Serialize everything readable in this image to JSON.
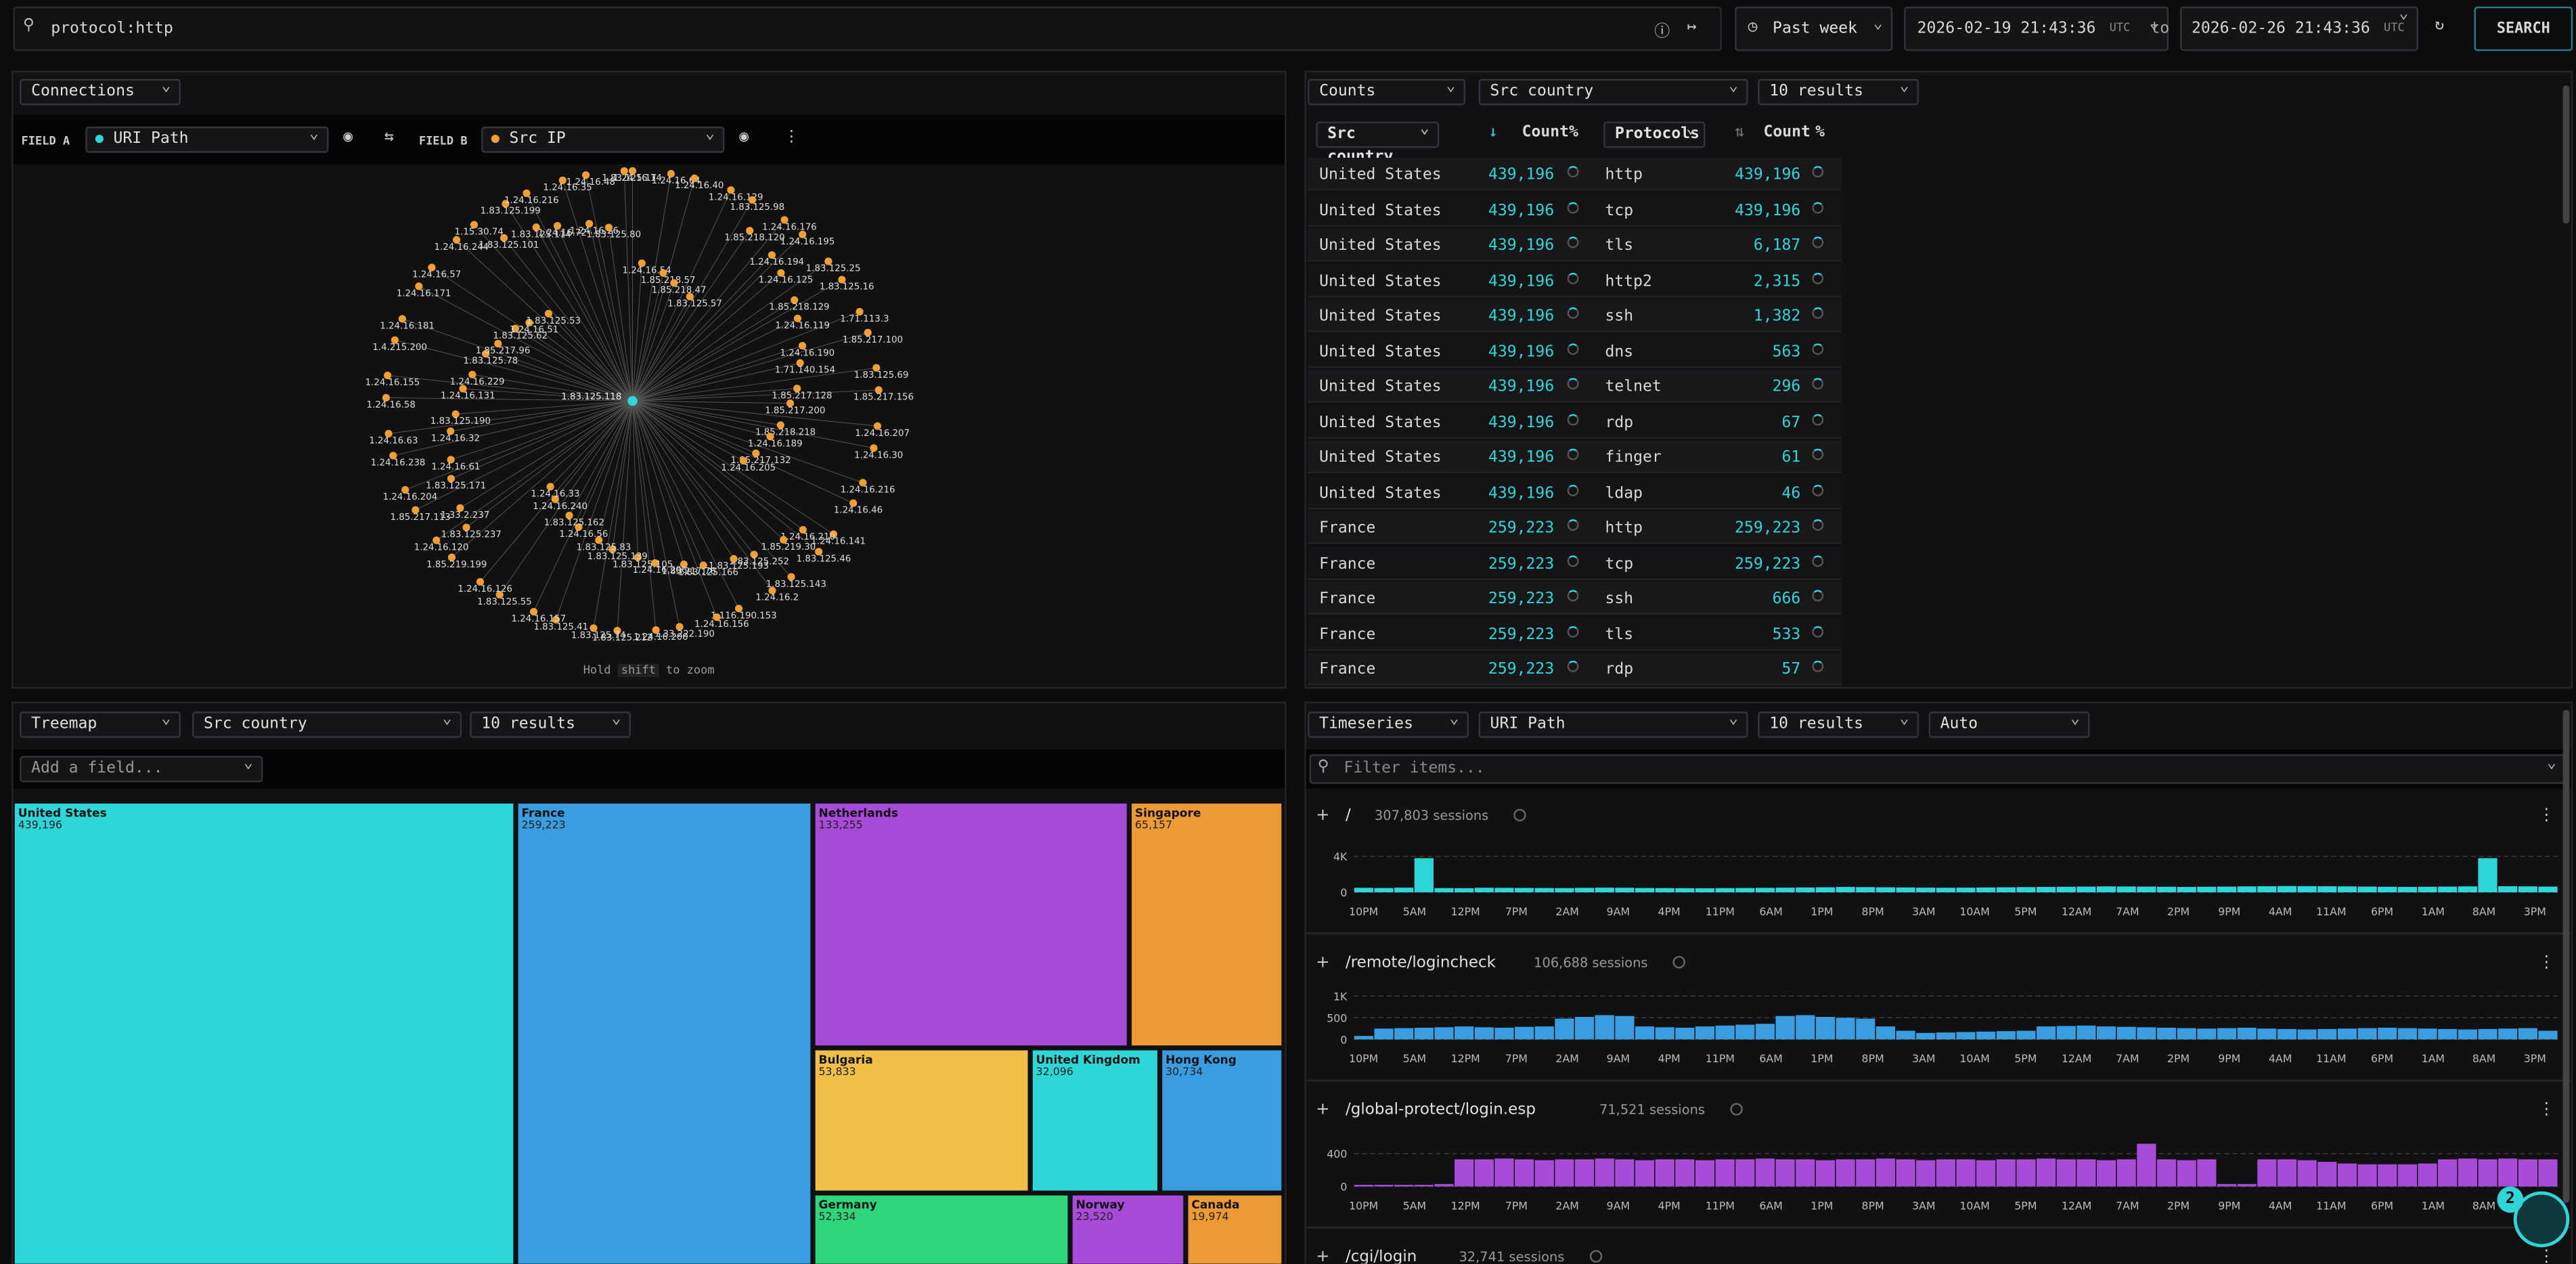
{
  "header": {
    "query": "protocol:http",
    "time_range": "Past week",
    "from": "2026-02-19 21:43:36",
    "from_tz": "UTC",
    "to_label": "to",
    "to": "2026-02-26 21:43:36",
    "to_tz": "UTC",
    "search": "SEARCH"
  },
  "graph_panel": {
    "view": "Connections",
    "field_a_label": "FIELD A",
    "field_a": "URI Path",
    "field_b_label": "FIELD B",
    "field_b": "Src IP",
    "hint_prefix": "Hold",
    "hint_key": "shift",
    "hint_suffix": "to zoom",
    "center_node": "1.83.125.118",
    "nodes": [
      "1.24.16.14",
      "1.24.16.64",
      "1.24.16.40",
      "1.24.16.129",
      "1.83.125.98",
      "1.24.16.176",
      "1.24.16.195",
      "1.83.125.25",
      "1.83.125.16",
      "1.71.113.3",
      "1.85.217.100",
      "1.83.125.69",
      "1.85.217.156",
      "1.24.16.207",
      "1.24.16.30",
      "1.24.16.216",
      "1.24.16.46",
      "1.24.16.141",
      "1.83.125.46",
      "1.83.125.143",
      "1.24.16.2",
      "1.116.190.153",
      "1.24.16.156",
      "1.33.222.190",
      "1.24.16.200",
      "1.83.125.212",
      "1.83.125.74",
      "1.83.125.41",
      "1.24.16.157",
      "1.83.125.55",
      "1.24.16.126",
      "1.85.219.199",
      "1.24.16.120",
      "1.85.217.113",
      "1.24.16.204",
      "1.24.16.238",
      "1.24.16.63",
      "1.24.16.58",
      "1.24.16.155",
      "1.4.215.200",
      "1.24.16.181",
      "1.24.16.171",
      "1.24.16.57",
      "1.24.16.244",
      "1.15.30.74",
      "1.83.125.199",
      "1.24.16.216",
      "1.24.16.35",
      "1.24.16.48",
      "1.83.125.17",
      "1.24.16.54",
      "1.85.218.57",
      "1.85.218.47",
      "1.83.125.57",
      "1.85.218.120",
      "1.24.16.194",
      "1.24.16.125",
      "1.85.218.129",
      "1.24.16.119",
      "1.24.16.190",
      "1.71.140.154",
      "1.85.217.128",
      "1.85.217.200",
      "1.85.218.218",
      "1.24.16.189",
      "1.85.217.132",
      "1.24.16.205",
      "1.24.16.210",
      "1.85.219.30",
      "1.83.125.252",
      "1.83.125.193",
      "1.83.125.166",
      "1.85.217.76",
      "1.24.16.206",
      "1.83.125.105",
      "1.83.125.139",
      "1.83.125.83",
      "1.24.16.56",
      "1.83.125.162",
      "1.24.16.240",
      "1.24.16.33",
      "1.83.125.237",
      "1.33.2.237",
      "1.83.125.171",
      "1.24.16.61",
      "1.24.16.32",
      "1.83.125.190",
      "1.24.16.131",
      "1.24.16.229",
      "1.83.125.78",
      "1.85.217.96",
      "1.83.125.62",
      "1.24.16.51",
      "1.83.125.53",
      "1.83.125.101",
      "1.83.125.114",
      "1.24.16.72",
      "1.24.16.26",
      "1.83.125.80"
    ]
  },
  "table_panel": {
    "view": "Counts",
    "field": "Src country",
    "limit": "10 results",
    "columns": [
      "Src country",
      "Count",
      "%",
      "Protocols",
      "Count",
      "%"
    ],
    "rows": [
      [
        "United States",
        "439,196",
        "http",
        "439,196"
      ],
      [
        "United States",
        "439,196",
        "tcp",
        "439,196"
      ],
      [
        "United States",
        "439,196",
        "tls",
        "6,187"
      ],
      [
        "United States",
        "439,196",
        "http2",
        "2,315"
      ],
      [
        "United States",
        "439,196",
        "ssh",
        "1,382"
      ],
      [
        "United States",
        "439,196",
        "dns",
        "563"
      ],
      [
        "United States",
        "439,196",
        "telnet",
        "296"
      ],
      [
        "United States",
        "439,196",
        "rdp",
        "67"
      ],
      [
        "United States",
        "439,196",
        "finger",
        "61"
      ],
      [
        "United States",
        "439,196",
        "ldap",
        "46"
      ],
      [
        "France",
        "259,223",
        "http",
        "259,223"
      ],
      [
        "France",
        "259,223",
        "tcp",
        "259,223"
      ],
      [
        "France",
        "259,223",
        "ssh",
        "666"
      ],
      [
        "France",
        "259,223",
        "tls",
        "533"
      ],
      [
        "France",
        "259,223",
        "rdp",
        "57"
      ]
    ]
  },
  "treemap_panel": {
    "view": "Treemap",
    "field": "Src country",
    "limit": "10 results",
    "add_field": "Add a field...",
    "items": [
      {
        "name": "United States",
        "value": 439196,
        "label": "439,196",
        "color": "#2fd6d8"
      },
      {
        "name": "France",
        "value": 259223,
        "label": "259,223",
        "color": "#3a9de0"
      },
      {
        "name": "Netherlands",
        "value": 133255,
        "label": "133,255",
        "color": "#a94bd9"
      },
      {
        "name": "Singapore",
        "value": 65157,
        "label": "65,157",
        "color": "#ec9a36"
      },
      {
        "name": "Bulgaria",
        "value": 53833,
        "label": "53,833",
        "color": "#f0bf4a"
      },
      {
        "name": "United Kingdom",
        "value": 32096,
        "label": "32,096",
        "color": "#2fd6d8"
      },
      {
        "name": "Hong Kong",
        "value": 30734,
        "label": "30,734",
        "color": "#3a9de0"
      },
      {
        "name": "Germany",
        "value": 52334,
        "label": "52,334",
        "color": "#2fd77c"
      },
      {
        "name": "Norway",
        "value": 23520,
        "label": "23,520",
        "color": "#a94bd9"
      },
      {
        "name": "Canada",
        "value": 19974,
        "label": "19,974",
        "color": "#ec9a36"
      }
    ]
  },
  "timeseries_panel": {
    "view": "Timeseries",
    "field": "URI Path",
    "limit": "10 results",
    "interval": "Auto",
    "filter": "Filter items...",
    "x_labels": [
      "10PM",
      "5AM",
      "12PM",
      "7PM",
      "2AM",
      "9AM",
      "4PM",
      "11PM",
      "6AM",
      "1PM",
      "8PM",
      "3AM",
      "10AM",
      "5PM",
      "12AM",
      "7AM",
      "2PM",
      "9PM",
      "4AM",
      "11AM",
      "6PM",
      "1AM",
      "8AM",
      "3PM"
    ],
    "rows": [
      {
        "name": "/",
        "sessions": "307,803 sessions",
        "color": "#2fd6d8",
        "ylim": [
          0,
          5300
        ],
        "yticks": [
          {
            "value": 0,
            "label": "0"
          },
          {
            "value": 4000,
            "label": "4K"
          }
        ],
        "values": [
          500,
          480,
          520,
          3800,
          470,
          460,
          510,
          500,
          490,
          480,
          470,
          500,
          520,
          510,
          480,
          470,
          460,
          450,
          470,
          480,
          500,
          520,
          540,
          560,
          600,
          580,
          560,
          540,
          520,
          510,
          520,
          540,
          560,
          580,
          600,
          620,
          640,
          660,
          650,
          640,
          620,
          600,
          620,
          640,
          660,
          680,
          700,
          690,
          680,
          660,
          640,
          620,
          600,
          620,
          640,
          660,
          3800,
          680,
          660,
          640
        ]
      },
      {
        "name": "/remote/logincheck",
        "sessions": "106,688 sessions",
        "color": "#3a9de0",
        "ylim": [
          0,
          1100
        ],
        "yticks": [
          0,
          500,
          {
            "value": 1000,
            "label": "1K"
          }
        ],
        "values": [
          80,
          250,
          260,
          270,
          280,
          300,
          280,
          270,
          290,
          300,
          480,
          520,
          560,
          540,
          300,
          280,
          270,
          300,
          320,
          340,
          360,
          540,
          560,
          520,
          500,
          480,
          300,
          200,
          150,
          160,
          170,
          180,
          190,
          200,
          300,
          310,
          320,
          300,
          290,
          280,
          270,
          260,
          250,
          260,
          270,
          250,
          240,
          230,
          240,
          250,
          260,
          270,
          260,
          250,
          240,
          230,
          240,
          250,
          260,
          200
        ]
      },
      {
        "name": "/global-protect/login.esp",
        "sessions": "71,521 sessions",
        "color": "#a94bd9",
        "ylim": [
          0,
          580
        ],
        "yticks": [
          0,
          400
        ],
        "values": [
          20,
          20,
          20,
          20,
          30,
          330,
          330,
          340,
          330,
          320,
          330,
          330,
          340,
          330,
          320,
          330,
          330,
          320,
          330,
          330,
          340,
          330,
          330,
          320,
          330,
          330,
          340,
          330,
          320,
          330,
          330,
          320,
          330,
          330,
          340,
          330,
          330,
          320,
          330,
          520,
          330,
          320,
          330,
          30,
          30,
          330,
          330,
          320,
          300,
          280,
          270,
          270,
          270,
          280,
          330,
          340,
          330,
          340,
          330,
          330
        ]
      },
      {
        "name": "/cgi/login",
        "sessions": "32,741 sessions",
        "color": "#2fd6d8"
      }
    ]
  },
  "notification_count": "2"
}
